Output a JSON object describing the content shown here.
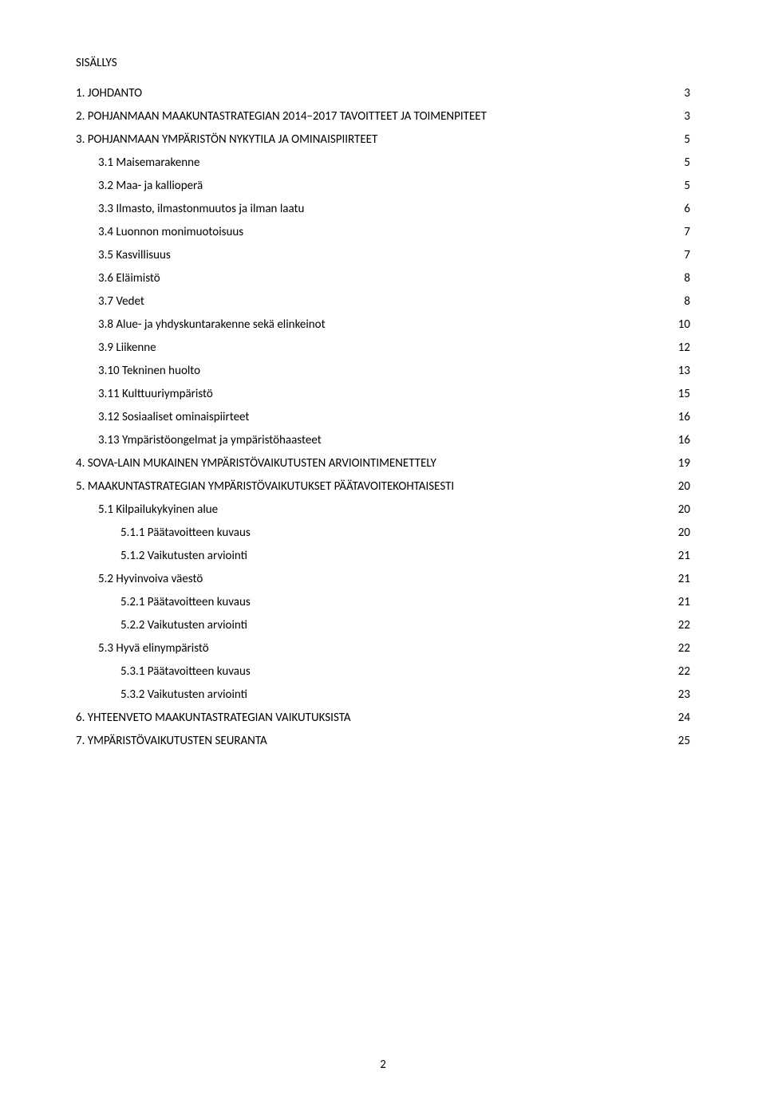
{
  "title": "SISÄLLYS",
  "pageNumber": "2",
  "fonts": {
    "body": 15
  },
  "colors": {
    "text": "#000000",
    "background": "#ffffff"
  },
  "toc": [
    {
      "indent": 0,
      "label": "1. JOHDANTO",
      "page": "3"
    },
    {
      "indent": 0,
      "label": "2. POHJANMAAN MAAKUNTASTRATEGIAN 2014–2017  TAVOITTEET JA TOIMENPITEET",
      "page": "3"
    },
    {
      "indent": 0,
      "label": "3. POHJANMAAN YMPÄRISTÖN NYKYTILA JA OMINAISPIIRTEET",
      "page": "5"
    },
    {
      "indent": 1,
      "label": "3.1 Maisemarakenne",
      "page": "5"
    },
    {
      "indent": 1,
      "label": "3.2 Maa- ja kallioperä",
      "page": "5"
    },
    {
      "indent": 1,
      "label": "3.3 Ilmasto, ilmastonmuutos ja ilman laatu",
      "page": "6"
    },
    {
      "indent": 1,
      "label": "3.4 Luonnon monimuotoisuus",
      "page": "7"
    },
    {
      "indent": 1,
      "label": "3.5 Kasvillisuus",
      "page": "7"
    },
    {
      "indent": 1,
      "label": "3.6 Eläimistö",
      "page": "8"
    },
    {
      "indent": 1,
      "label": "3.7 Vedet",
      "page": "8"
    },
    {
      "indent": 1,
      "label": "3.8 Alue- ja yhdyskuntarakenne sekä elinkeinot",
      "page": "10"
    },
    {
      "indent": 1,
      "label": "3.9 Liikenne",
      "page": "12"
    },
    {
      "indent": 1,
      "label": "3.10 Tekninen huolto",
      "page": "13"
    },
    {
      "indent": 1,
      "label": "3.11 Kulttuuriympäristö",
      "page": "15"
    },
    {
      "indent": 1,
      "label": "3.12 Sosiaaliset ominaispiirteet",
      "page": "16"
    },
    {
      "indent": 1,
      "label": "3.13 Ympäristöongelmat ja ympäristöhaasteet",
      "page": "16"
    },
    {
      "indent": 0,
      "label": "4. SOVA-LAIN MUKAINEN YMPÄRISTÖVAIKUTUSTEN ARVIOINTIMENETTELY",
      "page": "19"
    },
    {
      "indent": 0,
      "label": "5. MAAKUNTASTRATEGIAN YMPÄRISTÖVAIKUTUKSET PÄÄTAVOITEKOHTAISESTI",
      "page": "20"
    },
    {
      "indent": 1,
      "label": "5.1 Kilpailukykyinen alue",
      "page": "20"
    },
    {
      "indent": 2,
      "label": "5.1.1 Päätavoitteen kuvaus",
      "page": "20"
    },
    {
      "indent": 2,
      "label": "5.1.2 Vaikutusten arviointi",
      "page": "21"
    },
    {
      "indent": 1,
      "label": "5.2 Hyvinvoiva väestö",
      "page": "21"
    },
    {
      "indent": 2,
      "label": "5.2.1 Päätavoitteen kuvaus",
      "page": "21"
    },
    {
      "indent": 2,
      "label": "5.2.2 Vaikutusten arviointi",
      "page": "22"
    },
    {
      "indent": 1,
      "label": "5.3 Hyvä elinympäristö",
      "page": "22"
    },
    {
      "indent": 2,
      "label": "5.3.1 Päätavoitteen kuvaus",
      "page": "22"
    },
    {
      "indent": 2,
      "label": "5.3.2 Vaikutusten arviointi",
      "page": "23"
    },
    {
      "indent": 0,
      "label": "6. YHTEENVETO MAAKUNTASTRATEGIAN VAIKUTUKSISTA",
      "page": "24"
    },
    {
      "indent": 0,
      "label": "7. YMPÄRISTÖVAIKUTUSTEN SEURANTA",
      "page": "25"
    }
  ]
}
